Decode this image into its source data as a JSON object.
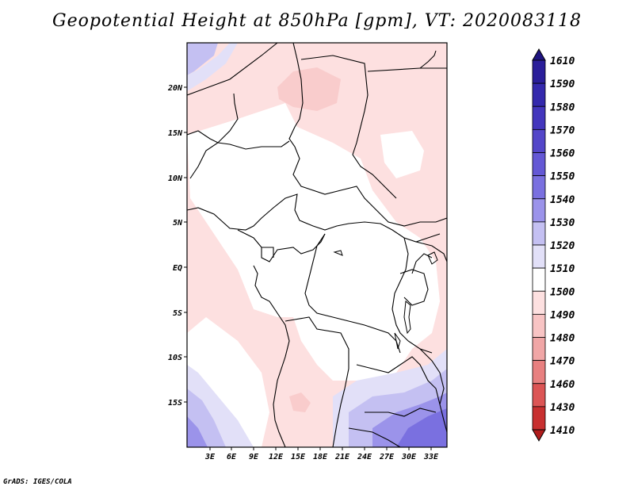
{
  "title": "Geopotential Height at 850hPa [gpm], VT: 2020083118",
  "footer": "GrADS: IGES/COLA",
  "map": {
    "lat_labels": [
      "20N",
      "15N",
      "10N",
      "5N",
      "EQ",
      "5S",
      "10S",
      "15S"
    ],
    "lon_labels": [
      "3E",
      "6E",
      "9E",
      "12E",
      "15E",
      "18E",
      "21E",
      "24E",
      "27E",
      "30E",
      "33E"
    ]
  },
  "colorbar": {
    "levels": [
      "1610",
      "1590",
      "1580",
      "1570",
      "1560",
      "1550",
      "1540",
      "1530",
      "1520",
      "1510",
      "1500",
      "1490",
      "1480",
      "1470",
      "1460",
      "1430",
      "1410"
    ],
    "colors": [
      "#1f1480",
      "#2a1e9a",
      "#3429ad",
      "#4336bd",
      "#5346c9",
      "#6458d5",
      "#7a70e0",
      "#9b93ea",
      "#c4c0f2",
      "#e2e0f8",
      "#ffffff",
      "#fde0e0",
      "#f8c4c4",
      "#f0a6a6",
      "#e88080",
      "#dc5555",
      "#c83030",
      "#b01c1c"
    ]
  }
}
